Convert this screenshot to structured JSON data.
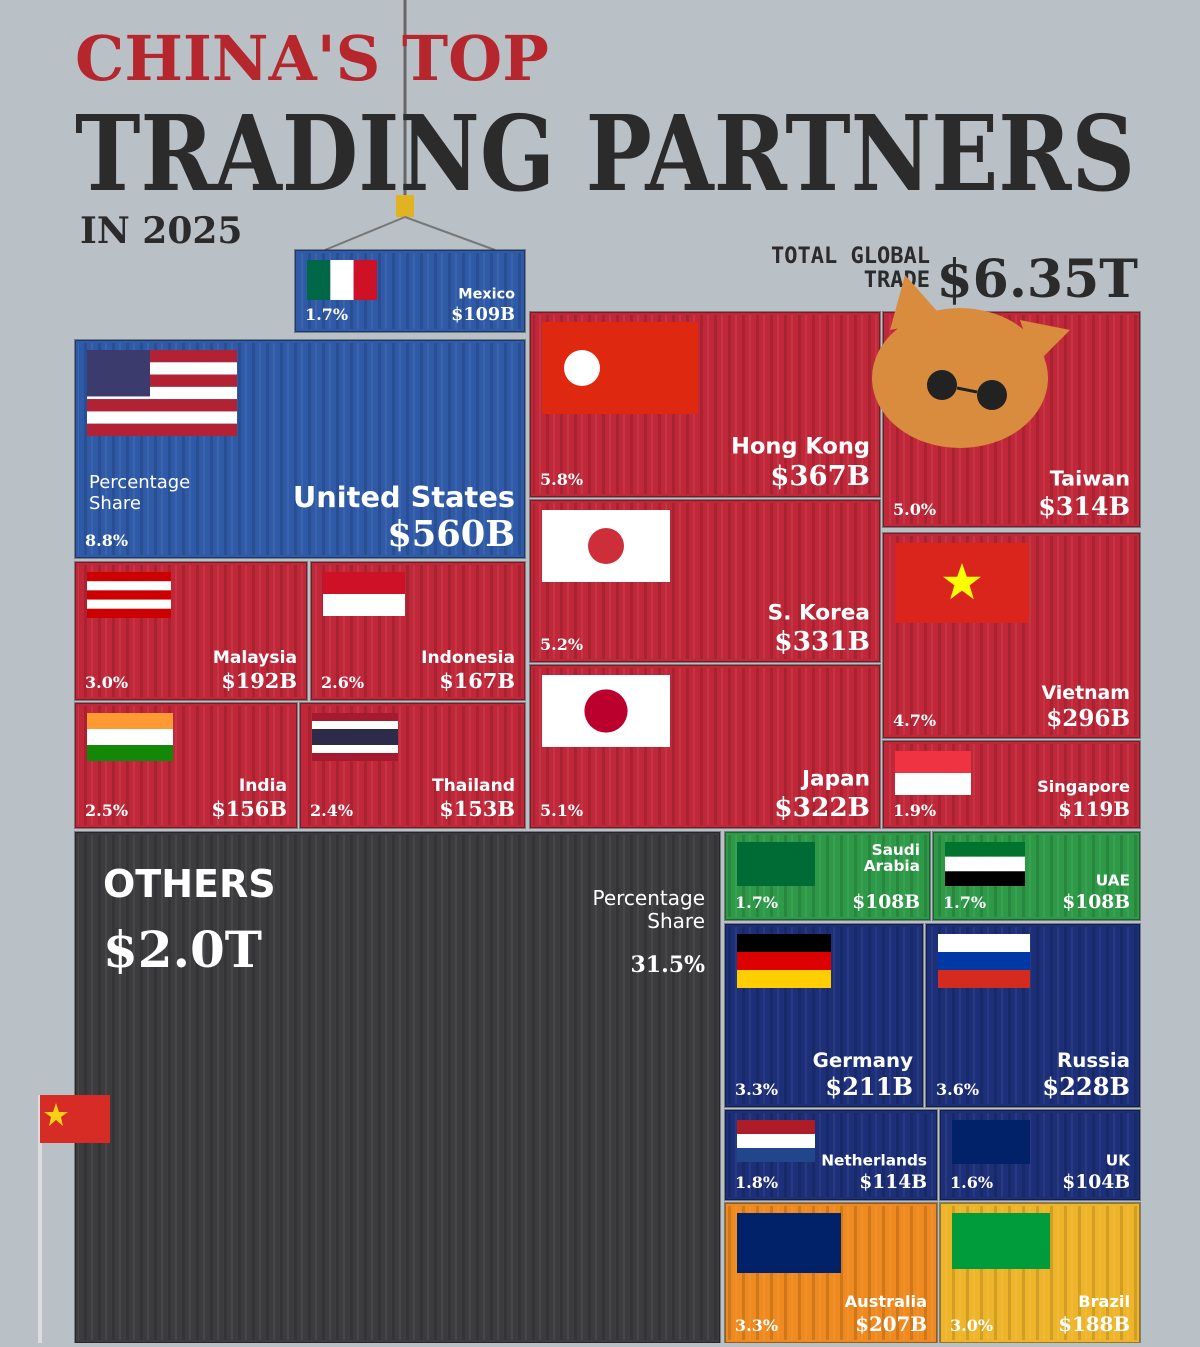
{
  "chart_data": {
    "type": "treemap",
    "title": "CHINA'S TOP",
    "subtitle": "TRADING PARTNERS",
    "year_label": "IN 2025",
    "total_heading": "TOTAL GLOBAL TRADE",
    "total": {
      "value": 6350,
      "label": "$6.35T"
    },
    "share_heading": "Percentage Share",
    "items": [
      {
        "name": "Mexico",
        "color": "#2f5aa8",
        "value": 109,
        "value_label": "$109B",
        "share": 1.7,
        "share_label": "1.7%"
      },
      {
        "name": "United States",
        "color": "#2f5aa8",
        "value": 560,
        "value_label": "$560B",
        "share": 8.8,
        "share_label": "8.8%"
      },
      {
        "name": "Malaysia",
        "color": "#c0283a",
        "value": 192,
        "value_label": "$192B",
        "share": 3.0,
        "share_label": "3.0%"
      },
      {
        "name": "Indonesia",
        "color": "#c0283a",
        "value": 167,
        "value_label": "$167B",
        "share": 2.6,
        "share_label": "2.6%"
      },
      {
        "name": "India",
        "color": "#c0283a",
        "value": 156,
        "value_label": "$156B",
        "share": 2.5,
        "share_label": "2.5%"
      },
      {
        "name": "Thailand",
        "color": "#c0283a",
        "value": 153,
        "value_label": "$153B",
        "share": 2.4,
        "share_label": "2.4%"
      },
      {
        "name": "Hong Kong",
        "color": "#c0283a",
        "value": 367,
        "value_label": "$367B",
        "share": 5.8,
        "share_label": "5.8%"
      },
      {
        "name": "S. Korea",
        "color": "#c0283a",
        "value": 331,
        "value_label": "$331B",
        "share": 5.2,
        "share_label": "5.2%"
      },
      {
        "name": "Japan",
        "color": "#c0283a",
        "value": 322,
        "value_label": "$322B",
        "share": 5.1,
        "share_label": "5.1%"
      },
      {
        "name": "Taiwan",
        "color": "#c0283a",
        "value": 314,
        "value_label": "$314B",
        "share": 5.0,
        "share_label": "5.0%"
      },
      {
        "name": "Vietnam",
        "color": "#c0283a",
        "value": 296,
        "value_label": "$296B",
        "share": 4.7,
        "share_label": "4.7%"
      },
      {
        "name": "Singapore",
        "color": "#c0283a",
        "value": 119,
        "value_label": "$119B",
        "share": 1.9,
        "share_label": "1.9%"
      },
      {
        "name": "OTHERS",
        "color": "#3c3c3e",
        "value": 2000,
        "value_label": "$2.0T",
        "share": 31.5,
        "share_label": "31.5%"
      },
      {
        "name": "Saudi Arabia",
        "color": "#2e9a48",
        "value": 108,
        "value_label": "$108B",
        "share": 1.7,
        "share_label": "1.7%"
      },
      {
        "name": "UAE",
        "color": "#2e9a48",
        "value": 108,
        "value_label": "$108B",
        "share": 1.7,
        "share_label": "1.7%"
      },
      {
        "name": "Germany",
        "color": "#1c2f78",
        "value": 211,
        "value_label": "$211B",
        "share": 3.3,
        "share_label": "3.3%"
      },
      {
        "name": "Russia",
        "color": "#1c2f78",
        "value": 228,
        "value_label": "$228B",
        "share": 3.6,
        "share_label": "3.6%"
      },
      {
        "name": "Netherlands",
        "color": "#1c2f78",
        "value": 114,
        "value_label": "$114B",
        "share": 1.8,
        "share_label": "1.8%"
      },
      {
        "name": "UK",
        "color": "#1c2f78",
        "value": 104,
        "value_label": "$104B",
        "share": 1.6,
        "share_label": "1.6%"
      },
      {
        "name": "Australia",
        "color": "#ee8a1f",
        "value": 207,
        "value_label": "$207B",
        "share": 3.3,
        "share_label": "3.3%"
      },
      {
        "name": "Brazil",
        "color": "#efb52a",
        "value": 188,
        "value_label": "$188B",
        "share": 3.0,
        "share_label": "3.0%"
      }
    ]
  }
}
